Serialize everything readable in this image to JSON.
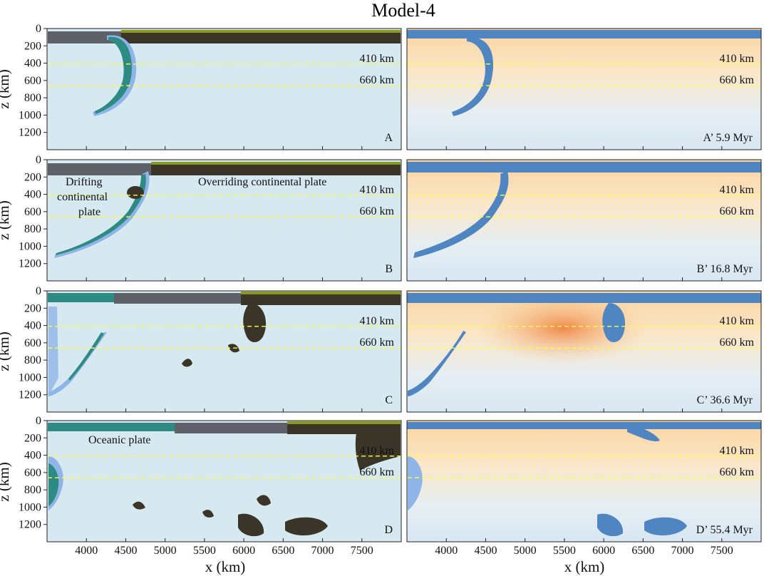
{
  "title": "Model-4",
  "y_axis_label": "z (km)",
  "x_axis_label": "x (km)",
  "y_ticks": [
    "0",
    "200",
    "400",
    "600",
    "800",
    "1000",
    "1200"
  ],
  "x_ticks": [
    "4000",
    "4500",
    "5000",
    "5500",
    "6000",
    "6500",
    "7000",
    "7500"
  ],
  "depth_lines": [
    {
      "label": "410 km",
      "depth": 410
    },
    {
      "label": "660 km",
      "depth": 660
    }
  ],
  "panels_left": [
    {
      "label": "A",
      "annotations": []
    },
    {
      "label": "B",
      "annotations": [
        "Drifting",
        "continental",
        "plate",
        "Overriding continental plate"
      ]
    },
    {
      "label": "C",
      "annotations": []
    },
    {
      "label": "D",
      "annotations": [
        "Oceanic plate"
      ]
    }
  ],
  "panels_right": [
    {
      "label": "A’ 5.9 Myr"
    },
    {
      "label": "B’ 16.8 Myr"
    },
    {
      "label": "C’ 36.6 Myr"
    },
    {
      "label": "D’ 55.4 Myr"
    }
  ],
  "colors": {
    "mantle": "#d6e9f1",
    "continent_crust": "#5f6169",
    "overriding_lithosphere": "#3a3528",
    "sediment": "#8a9a1e",
    "slab_green": "#2e8b83",
    "slab_blue": "#8fb4e8",
    "depth_line": "#ffff33",
    "cold": "#4f86c2",
    "warm": "#f6c48a",
    "hot": "#ee8a4a"
  }
}
